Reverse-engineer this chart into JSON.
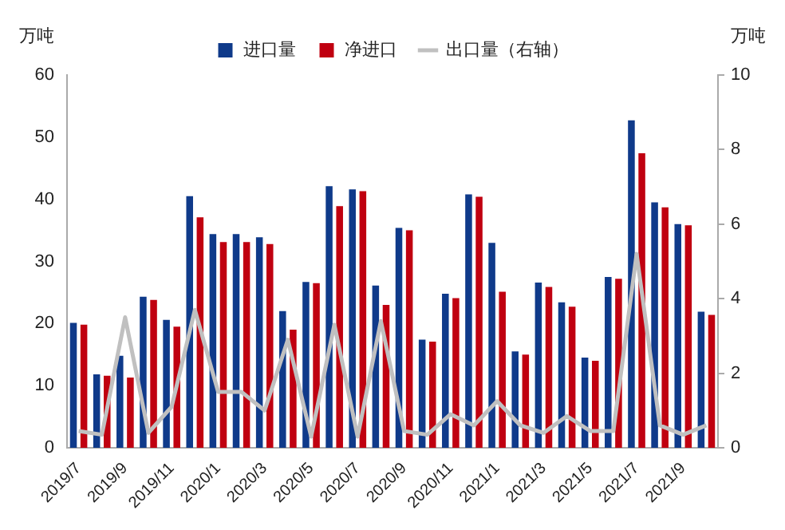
{
  "chart_data": {
    "type": "bar",
    "ylabel": "万吨",
    "y2label": "万吨",
    "categories": [
      "2019/7",
      null,
      "2019/9",
      null,
      "2019/11",
      null,
      "2020/1",
      null,
      "2020/3",
      null,
      "2020/5",
      null,
      "2020/7",
      null,
      "2020/9",
      null,
      "2020/11",
      null,
      "2021/1",
      null,
      "2021/3",
      null,
      "2021/5",
      null,
      "2021/7",
      null,
      "2021/9",
      null
    ],
    "series": [
      {
        "name": "进口量",
        "color": "#0f3a8a",
        "values": [
          20.1,
          11.8,
          14.8,
          24.3,
          20.6,
          40.5,
          34.4,
          34.4,
          33.9,
          22.0,
          26.7,
          42.1,
          41.6,
          26.1,
          35.4,
          17.4,
          24.8,
          40.8,
          33.0,
          15.5,
          26.6,
          23.4,
          14.5,
          27.5,
          52.7,
          39.5,
          36.0,
          21.9
        ]
      },
      {
        "name": "净进口",
        "color": "#c00010",
        "values": [
          19.8,
          11.6,
          11.3,
          23.8,
          19.5,
          37.1,
          33.1,
          33.1,
          32.8,
          19.0,
          26.5,
          38.9,
          41.3,
          23.0,
          35.0,
          17.1,
          24.1,
          40.4,
          25.1,
          15.0,
          25.9,
          22.7,
          14.0,
          27.2,
          47.4,
          38.7,
          35.8,
          21.4
        ]
      },
      {
        "name": "出口量（右轴）",
        "type": "line",
        "axis": "y2",
        "color": "#c0c0c0",
        "values": [
          0.45,
          0.35,
          3.5,
          0.4,
          1.1,
          3.7,
          1.5,
          1.5,
          1.0,
          2.9,
          0.3,
          3.3,
          0.3,
          3.4,
          0.45,
          0.35,
          0.9,
          0.6,
          1.25,
          0.6,
          0.4,
          0.85,
          0.45,
          0.45,
          5.2,
          0.6,
          0.35,
          0.6
        ]
      }
    ],
    "ylim": [
      0,
      60
    ],
    "yticks": [
      0,
      10,
      20,
      30,
      40,
      50,
      60
    ],
    "y2lim": [
      0,
      10
    ],
    "y2ticks": [
      0,
      2,
      4,
      6,
      8,
      10
    ],
    "grid": false,
    "legend": "top",
    "marker": "none"
  }
}
